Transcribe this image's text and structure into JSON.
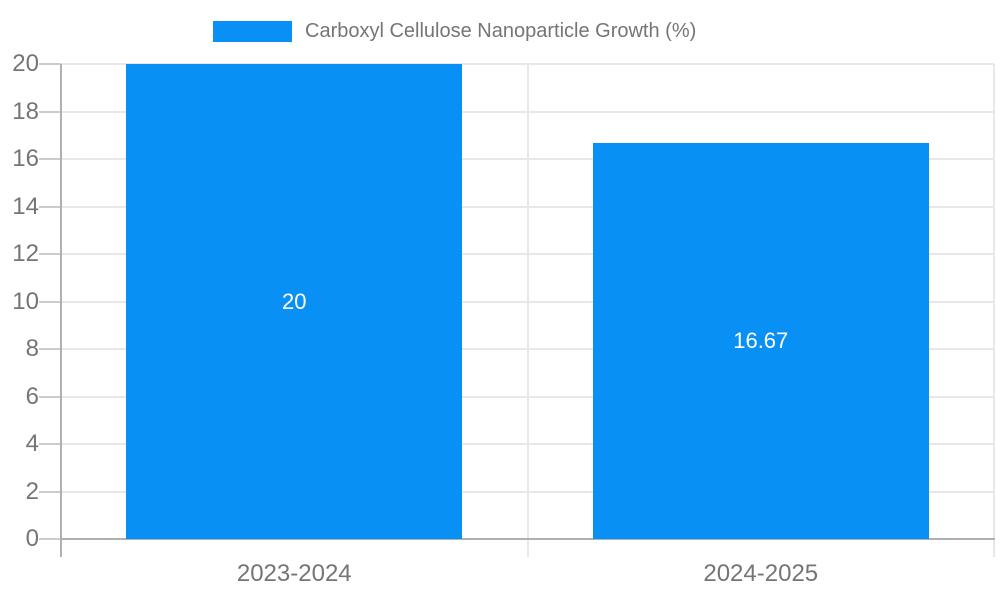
{
  "chart_data": {
    "type": "bar",
    "title": "Carboxyl Cellulose Nanoparticle Growth (%)",
    "legend_label": "Carboxyl Cellulose Nanoparticle Growth (%)",
    "legend_position": "top",
    "categories": [
      "2023-2024",
      "2024-2025"
    ],
    "values": [
      20,
      16.67
    ],
    "data_labels": [
      "20",
      "16.67"
    ],
    "yticks": [
      0,
      2,
      4,
      6,
      8,
      10,
      12,
      14,
      16,
      18,
      20
    ],
    "ylim": [
      0,
      20
    ],
    "xlabel": "",
    "ylabel": "",
    "grid": true,
    "colors": {
      "bar": "#0990f5",
      "axis_line": "#b0b0b0",
      "gridline": "#e8e8e8",
      "tick_mark": "#cccccc",
      "tick_label_text": "#757575",
      "legend_text": "#757575",
      "data_label_text": "#ffffff",
      "background": "#ffffff"
    }
  }
}
